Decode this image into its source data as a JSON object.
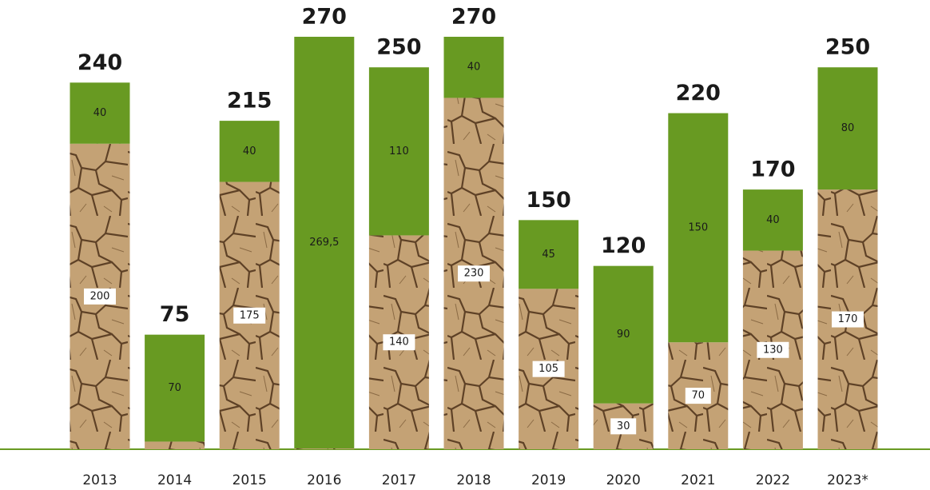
{
  "chart_data": {
    "type": "stacked-bar",
    "categories": [
      "2013",
      "2014",
      "2015",
      "2016",
      "2017",
      "2018",
      "2019",
      "2020",
      "2021",
      "2022",
      "2023*"
    ],
    "series": [
      {
        "color": "#b8956a",
        "values": [
          200,
          5,
          175,
          0.5,
          140,
          230,
          105,
          30,
          70,
          130,
          170
        ],
        "value_labels": [
          "200",
          "5",
          "175",
          "0,5",
          "140",
          "230",
          "105",
          "30",
          "70",
          "130",
          "170"
        ]
      },
      {
        "color": "#689a22",
        "values": [
          40,
          70,
          40,
          269.5,
          110,
          40,
          45,
          90,
          150,
          40,
          80
        ],
        "value_labels": [
          "40",
          "70",
          "40",
          "269,5",
          "110",
          "40",
          "45",
          "90",
          "150",
          "40",
          "80"
        ]
      }
    ],
    "totals": [
      240,
      75,
      215,
      270,
      250,
      270,
      150,
      120,
      220,
      170,
      250
    ],
    "ylim": [
      0,
      270
    ]
  }
}
